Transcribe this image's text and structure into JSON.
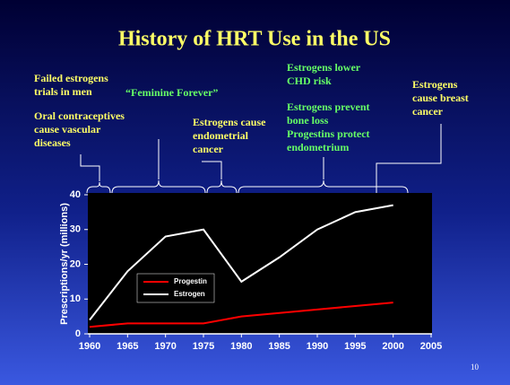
{
  "chart_data": {
    "type": "line",
    "title": "History of HRT Use in the US",
    "annotations": [
      {
        "lines": [
          "Failed estrogens",
          "trials in men"
        ],
        "color": "#ffff66"
      },
      {
        "lines": [
          "Oral contraceptives",
          "cause vascular",
          "diseases"
        ],
        "color": "#ffff66"
      },
      {
        "lines": [
          "“Feminine Forever”"
        ],
        "color": "#66ff66"
      },
      {
        "lines": [
          "Estrogens cause",
          "endometrial",
          "cancer"
        ],
        "color": "#ffff66"
      },
      {
        "lines": [
          "Estrogens lower",
          "CHD risk"
        ],
        "color": "#66ff66"
      },
      {
        "lines": [
          "Estrogens prevent",
          "bone loss",
          "Progestins protect",
          "endometrium"
        ],
        "color": "#66ff66"
      },
      {
        "lines": [
          "Estrogens",
          "cause breast",
          "cancer"
        ],
        "color": "#ffff66"
      }
    ],
    "y_label": "Prescriptions/yr (millions)",
    "x": [
      1960,
      1965,
      1970,
      1975,
      1980,
      1985,
      1990,
      1995,
      2000
    ],
    "series": [
      {
        "name": "Progestin",
        "color": "#ff0000",
        "values": [
          2,
          3,
          3,
          3,
          5,
          6,
          7,
          8,
          9
        ]
      },
      {
        "name": "Estrogen",
        "color": "#ffffff",
        "values": [
          4,
          18,
          28,
          30,
          15,
          22,
          30,
          35,
          37
        ]
      }
    ],
    "xlim": [
      1960,
      2005
    ],
    "xticks": [
      1960,
      1965,
      1970,
      1975,
      1980,
      1985,
      1990,
      1995,
      2000,
      2005
    ],
    "ylim": [
      0,
      40
    ],
    "yticks": [
      0,
      10,
      20,
      30,
      40
    ],
    "page_number": "10"
  }
}
